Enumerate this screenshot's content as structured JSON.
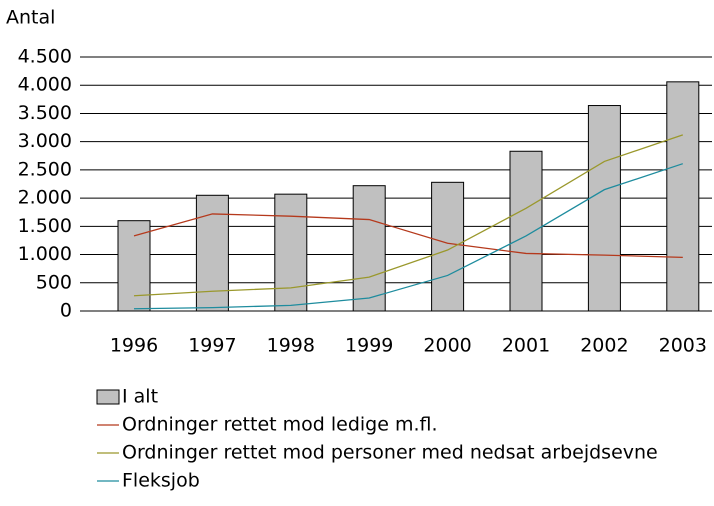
{
  "chart_data": {
    "type": "bar_line",
    "y_label": "Antal",
    "categories": [
      "1996",
      "1997",
      "1998",
      "1999",
      "2000",
      "2001",
      "2002",
      "2003"
    ],
    "series": [
      {
        "name": "I alt",
        "type": "bar",
        "color": "#c0c0c0",
        "values": [
          1600,
          2050,
          2070,
          2220,
          2280,
          2830,
          3640,
          4060
        ]
      },
      {
        "name": "Ordninger rettet mod ledige m.fl.",
        "type": "line",
        "color": "#b5391c",
        "values": [
          1330,
          1720,
          1680,
          1620,
          1200,
          1020,
          990,
          950
        ]
      },
      {
        "name": "Ordninger rettet mod personer med nedsat arbejdsevne",
        "type": "line",
        "color": "#9a982c",
        "values": [
          270,
          350,
          410,
          600,
          1080,
          1820,
          2650,
          3120
        ]
      },
      {
        "name": "Fleksjob",
        "type": "line",
        "color": "#1e8c9e",
        "values": [
          40,
          60,
          100,
          230,
          630,
          1330,
          2150,
          2610
        ]
      }
    ],
    "ylim": [
      0,
      4500
    ],
    "yticks": [
      0,
      500,
      {
        "value": 1000,
        "label": "1.000"
      },
      {
        "value": 1500,
        "label": "1.500"
      },
      {
        "value": 2000,
        "label": "2.000"
      },
      {
        "value": 2500,
        "label": "2.500"
      },
      {
        "value": 3000,
        "label": "3.000"
      },
      {
        "value": 3500,
        "label": "3.500"
      },
      {
        "value": 4000,
        "label": "4.000"
      },
      {
        "value": 4500,
        "label": "4.500"
      }
    ],
    "grid": true
  }
}
